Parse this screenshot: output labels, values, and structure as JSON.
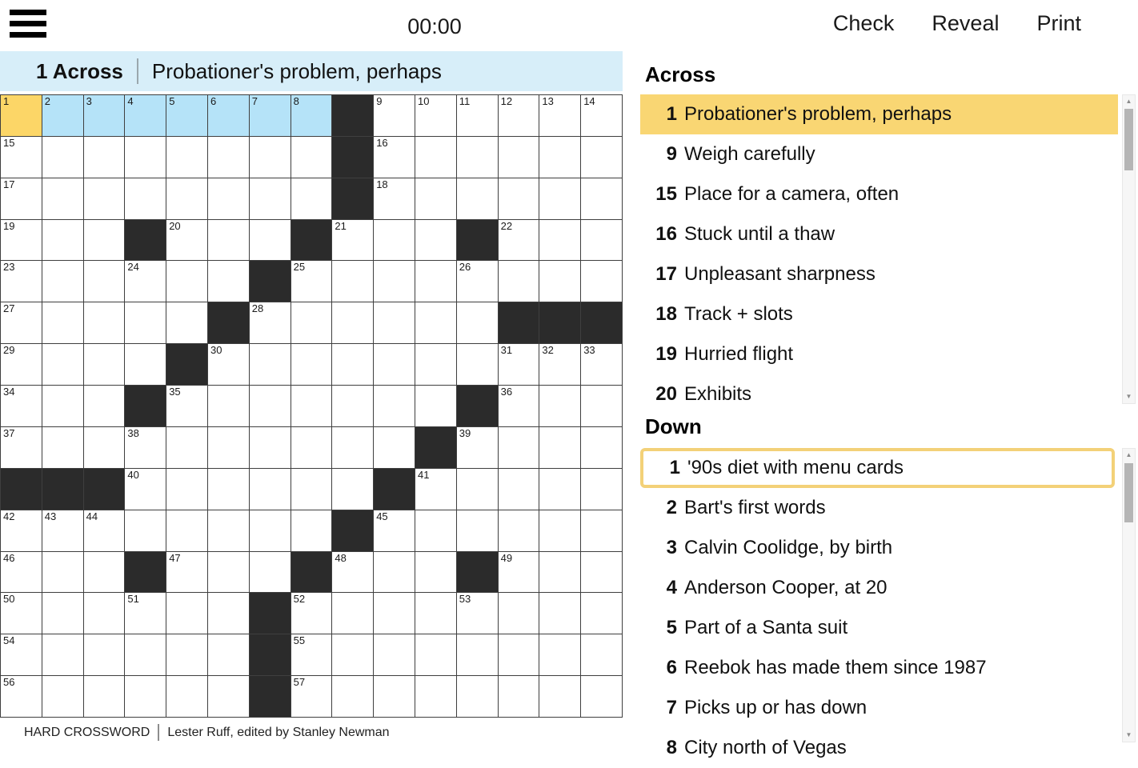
{
  "colors": {
    "banner_bg": "#d7eef9",
    "word_highlight": "#b5e3f8",
    "cursor_cell": "#fcd667",
    "across_selected_bg": "#f9d673",
    "down_selected_border": "#f3d178",
    "black_cell": "#2b2b2b",
    "grid_line": "#3f3f3f"
  },
  "toolbar": {
    "timer": "00:00",
    "check_label": "Check",
    "reveal_label": "Reveal",
    "print_label": "Print"
  },
  "current_clue": {
    "label": "1 Across",
    "text": "Probationer's problem, perhaps"
  },
  "caption": {
    "title": "HARD CROSSWORD",
    "byline": "Lester Ruff, edited by Stanley Newman"
  },
  "clues": {
    "across": {
      "header": "Across",
      "items": [
        {
          "num": 1,
          "text": "Probationer's problem, perhaps",
          "selected": true
        },
        {
          "num": 9,
          "text": "Weigh carefully"
        },
        {
          "num": 15,
          "text": "Place for a camera, often"
        },
        {
          "num": 16,
          "text": "Stuck until a thaw"
        },
        {
          "num": 17,
          "text": "Unpleasant sharpness"
        },
        {
          "num": 18,
          "text": "Track + slots"
        },
        {
          "num": 19,
          "text": "Hurried flight"
        },
        {
          "num": 20,
          "text": "Exhibits"
        }
      ]
    },
    "down": {
      "header": "Down",
      "items": [
        {
          "num": 1,
          "text": "'90s diet with menu cards",
          "selected": true
        },
        {
          "num": 2,
          "text": "Bart's first words"
        },
        {
          "num": 3,
          "text": "Calvin Coolidge, by birth"
        },
        {
          "num": 4,
          "text": "Anderson Cooper, at 20"
        },
        {
          "num": 5,
          "text": "Part of a Santa suit"
        },
        {
          "num": 6,
          "text": "Reebok has made them since 1987"
        },
        {
          "num": 7,
          "text": "Picks up or has down"
        },
        {
          "num": 8,
          "text": "City north of Vegas"
        }
      ]
    }
  },
  "grid": {
    "rows": [
      [
        {
          "n": 1,
          "hl": "cursor"
        },
        {
          "n": 2,
          "hl": "word"
        },
        {
          "n": 3,
          "hl": "word"
        },
        {
          "n": 4,
          "hl": "word"
        },
        {
          "n": 5,
          "hl": "word"
        },
        {
          "n": 6,
          "hl": "word"
        },
        {
          "n": 7,
          "hl": "word"
        },
        {
          "n": 8,
          "hl": "word"
        },
        {
          "b": 1
        },
        {
          "n": 9
        },
        {
          "n": 10
        },
        {
          "n": 11
        },
        {
          "n": 12
        },
        {
          "n": 13
        },
        {
          "n": 14
        }
      ],
      [
        {
          "n": 15
        },
        {},
        {},
        {},
        {},
        {},
        {},
        {},
        {
          "b": 1
        },
        {
          "n": 16
        },
        {},
        {},
        {},
        {},
        {}
      ],
      [
        {
          "n": 17
        },
        {},
        {},
        {},
        {},
        {},
        {},
        {},
        {
          "b": 1
        },
        {
          "n": 18
        },
        {},
        {},
        {},
        {},
        {}
      ],
      [
        {
          "n": 19
        },
        {},
        {},
        {
          "b": 1
        },
        {
          "n": 20
        },
        {},
        {},
        {
          "b": 1
        },
        {
          "n": 21
        },
        {},
        {},
        {
          "b": 1
        },
        {
          "n": 22
        },
        {},
        {}
      ],
      [
        {
          "n": 23
        },
        {},
        {},
        {
          "n": 24
        },
        {},
        {},
        {
          "b": 1
        },
        {
          "n": 25
        },
        {},
        {},
        {},
        {
          "n": 26
        },
        {},
        {},
        {}
      ],
      [
        {
          "n": 27
        },
        {},
        {},
        {},
        {},
        {
          "b": 1
        },
        {
          "n": 28
        },
        {},
        {},
        {},
        {},
        {},
        {
          "b": 1
        },
        {
          "b": 1
        },
        {
          "b": 1
        }
      ],
      [
        {
          "n": 29
        },
        {},
        {},
        {},
        {
          "b": 1
        },
        {
          "n": 30
        },
        {},
        {},
        {},
        {},
        {},
        {},
        {
          "n": 31
        },
        {
          "n": 32
        },
        {
          "n": 33
        }
      ],
      [
        {
          "n": 34
        },
        {},
        {},
        {
          "b": 1
        },
        {
          "n": 35
        },
        {},
        {},
        {},
        {},
        {},
        {},
        {
          "b": 1
        },
        {
          "n": 36
        },
        {},
        {}
      ],
      [
        {
          "n": 37
        },
        {},
        {},
        {
          "n": 38
        },
        {},
        {},
        {},
        {},
        {},
        {},
        {
          "b": 1
        },
        {
          "n": 39
        },
        {},
        {},
        {}
      ],
      [
        {
          "b": 1
        },
        {
          "b": 1
        },
        {
          "b": 1
        },
        {
          "n": 40
        },
        {},
        {},
        {},
        {},
        {},
        {
          "b": 1
        },
        {
          "n": 41
        },
        {},
        {},
        {},
        {}
      ],
      [
        {
          "n": 42
        },
        {
          "n": 43
        },
        {
          "n": 44
        },
        {},
        {},
        {},
        {},
        {},
        {
          "b": 1
        },
        {
          "n": 45
        },
        {},
        {},
        {},
        {},
        {}
      ],
      [
        {
          "n": 46
        },
        {},
        {},
        {
          "b": 1
        },
        {
          "n": 47
        },
        {},
        {},
        {
          "b": 1
        },
        {
          "n": 48
        },
        {},
        {},
        {
          "b": 1
        },
        {
          "n": 49
        },
        {},
        {}
      ],
      [
        {
          "n": 50
        },
        {},
        {},
        {
          "n": 51
        },
        {},
        {},
        {
          "b": 1
        },
        {
          "n": 52
        },
        {},
        {},
        {},
        {
          "n": 53
        },
        {},
        {},
        {}
      ],
      [
        {
          "n": 54
        },
        {},
        {},
        {},
        {},
        {},
        {
          "b": 1
        },
        {
          "n": 55
        },
        {},
        {},
        {},
        {},
        {},
        {},
        {}
      ],
      [
        {
          "n": 56
        },
        {},
        {},
        {},
        {},
        {},
        {
          "b": 1
        },
        {
          "n": 57
        },
        {},
        {},
        {},
        {},
        {},
        {},
        {}
      ]
    ]
  }
}
